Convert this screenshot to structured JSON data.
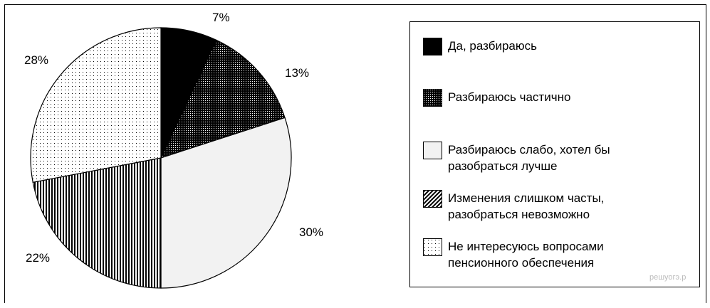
{
  "chart_data": {
    "type": "pie",
    "title": "",
    "slices": [
      {
        "label": "Да, разбираюсь",
        "value": 7,
        "value_label": "7%",
        "fill": "#000000",
        "pattern": "solid"
      },
      {
        "label": "Разбираюсь частично",
        "value": 13,
        "value_label": "13%",
        "fill": "#000000",
        "pattern": "dense-dots"
      },
      {
        "label": "Разбираюсь слабо, хотел бы\nразобраться лучше",
        "value": 30,
        "value_label": "30%",
        "fill": "#f2f2f2",
        "pattern": "light"
      },
      {
        "label": "Изменения слишком часты,\nразобраться невозможно",
        "value": 22,
        "value_label": "22%",
        "fill": "#000000",
        "pattern": "vertical-stripes"
      },
      {
        "label": "Не интересуюсь вопросами\nпенсионного обеспечения",
        "value": 28,
        "value_label": "28%",
        "fill": "#ffffff",
        "pattern": "sparse-dots"
      }
    ],
    "start_angle": "12 o'clock",
    "direction": "clockwise",
    "legend_position": "right"
  },
  "watermark": "решуогэ.р"
}
